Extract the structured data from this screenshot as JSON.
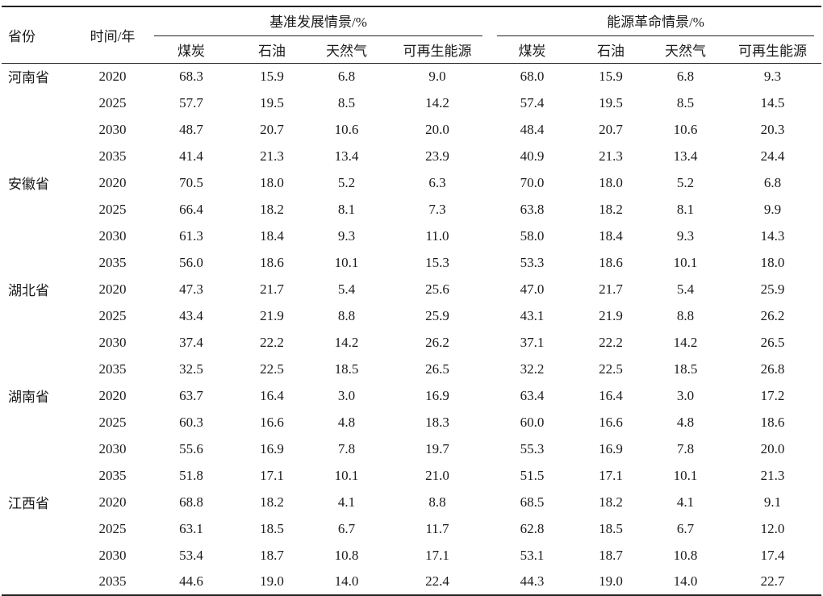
{
  "table": {
    "columns": {
      "province": "省份",
      "year": "时间/年"
    },
    "groups": [
      {
        "label": "基准发展情景/%",
        "subs": [
          "煤炭",
          "石油",
          "天然气",
          "可再生能源"
        ]
      },
      {
        "label": "能源革命情景/%",
        "subs": [
          "煤炭",
          "石油",
          "天然气",
          "可再生能源"
        ]
      }
    ],
    "rows": [
      {
        "province": "河南省",
        "year": "2020",
        "values": [
          "68.3",
          "15.9",
          "6.8",
          "9.0",
          "68.0",
          "15.9",
          "6.8",
          "9.3"
        ]
      },
      {
        "province": "",
        "year": "2025",
        "values": [
          "57.7",
          "19.5",
          "8.5",
          "14.2",
          "57.4",
          "19.5",
          "8.5",
          "14.5"
        ]
      },
      {
        "province": "",
        "year": "2030",
        "values": [
          "48.7",
          "20.7",
          "10.6",
          "20.0",
          "48.4",
          "20.7",
          "10.6",
          "20.3"
        ]
      },
      {
        "province": "",
        "year": "2035",
        "values": [
          "41.4",
          "21.3",
          "13.4",
          "23.9",
          "40.9",
          "21.3",
          "13.4",
          "24.4"
        ]
      },
      {
        "province": "安徽省",
        "year": "2020",
        "values": [
          "70.5",
          "18.0",
          "5.2",
          "6.3",
          "70.0",
          "18.0",
          "5.2",
          "6.8"
        ]
      },
      {
        "province": "",
        "year": "2025",
        "values": [
          "66.4",
          "18.2",
          "8.1",
          "7.3",
          "63.8",
          "18.2",
          "8.1",
          "9.9"
        ]
      },
      {
        "province": "",
        "year": "2030",
        "values": [
          "61.3",
          "18.4",
          "9.3",
          "11.0",
          "58.0",
          "18.4",
          "9.3",
          "14.3"
        ]
      },
      {
        "province": "",
        "year": "2035",
        "values": [
          "56.0",
          "18.6",
          "10.1",
          "15.3",
          "53.3",
          "18.6",
          "10.1",
          "18.0"
        ]
      },
      {
        "province": "湖北省",
        "year": "2020",
        "values": [
          "47.3",
          "21.7",
          "5.4",
          "25.6",
          "47.0",
          "21.7",
          "5.4",
          "25.9"
        ]
      },
      {
        "province": "",
        "year": "2025",
        "values": [
          "43.4",
          "21.9",
          "8.8",
          "25.9",
          "43.1",
          "21.9",
          "8.8",
          "26.2"
        ]
      },
      {
        "province": "",
        "year": "2030",
        "values": [
          "37.4",
          "22.2",
          "14.2",
          "26.2",
          "37.1",
          "22.2",
          "14.2",
          "26.5"
        ]
      },
      {
        "province": "",
        "year": "2035",
        "values": [
          "32.5",
          "22.5",
          "18.5",
          "26.5",
          "32.2",
          "22.5",
          "18.5",
          "26.8"
        ]
      },
      {
        "province": "湖南省",
        "year": "2020",
        "values": [
          "63.7",
          "16.4",
          "3.0",
          "16.9",
          "63.4",
          "16.4",
          "3.0",
          "17.2"
        ]
      },
      {
        "province": "",
        "year": "2025",
        "values": [
          "60.3",
          "16.6",
          "4.8",
          "18.3",
          "60.0",
          "16.6",
          "4.8",
          "18.6"
        ]
      },
      {
        "province": "",
        "year": "2030",
        "values": [
          "55.6",
          "16.9",
          "7.8",
          "19.7",
          "55.3",
          "16.9",
          "7.8",
          "20.0"
        ]
      },
      {
        "province": "",
        "year": "2035",
        "values": [
          "51.8",
          "17.1",
          "10.1",
          "21.0",
          "51.5",
          "17.1",
          "10.1",
          "21.3"
        ]
      },
      {
        "province": "江西省",
        "year": "2020",
        "values": [
          "68.8",
          "18.2",
          "4.1",
          "8.8",
          "68.5",
          "18.2",
          "4.1",
          "9.1"
        ]
      },
      {
        "province": "",
        "year": "2025",
        "values": [
          "63.1",
          "18.5",
          "6.7",
          "11.7",
          "62.8",
          "18.5",
          "6.7",
          "12.0"
        ]
      },
      {
        "province": "",
        "year": "2030",
        "values": [
          "53.4",
          "18.7",
          "10.8",
          "17.1",
          "53.1",
          "18.7",
          "10.8",
          "17.4"
        ]
      },
      {
        "province": "",
        "year": "2035",
        "values": [
          "44.6",
          "19.0",
          "14.0",
          "22.4",
          "44.3",
          "19.0",
          "14.0",
          "22.7"
        ]
      }
    ]
  }
}
